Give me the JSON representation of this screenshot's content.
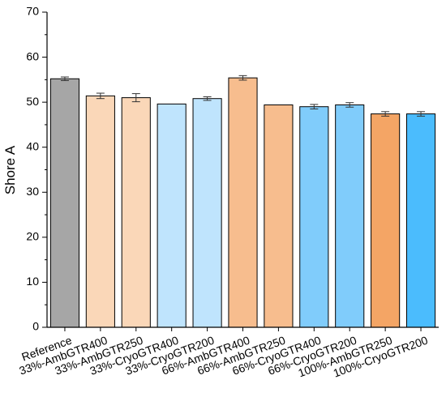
{
  "chart_data": {
    "type": "bar",
    "title": "",
    "xlabel": "",
    "ylabel": "Shore A",
    "ylim": [
      0,
      70
    ],
    "yticks": [
      0,
      10,
      20,
      30,
      40,
      50,
      60,
      70
    ],
    "grid": false,
    "error_bars": true,
    "categories": [
      "Reference",
      "33%-AmbGTR400",
      "33%-AmbGTR250",
      "33%-CryoGTR400",
      "33%-CryoGTR200",
      "66%-AmbGTR400",
      "66%-AmbGTR250",
      "66%-CryoGTR400",
      "66%-CryoGTR200",
      "100%-AmbGTR250",
      "100%-CryoGTR200"
    ],
    "values": [
      55.2,
      51.4,
      51.0,
      49.6,
      50.8,
      55.4,
      49.4,
      49.0,
      49.4,
      47.4,
      47.4
    ],
    "errors": [
      0.4,
      0.6,
      0.9,
      0.0,
      0.4,
      0.5,
      0.0,
      0.5,
      0.5,
      0.5,
      0.5
    ],
    "colors": [
      "#a6a6a6",
      "#fad7b8",
      "#fad7b8",
      "#bfe4fd",
      "#bfe4fd",
      "#f7bd8e",
      "#f7bd8e",
      "#80ccfb",
      "#80ccfb",
      "#f4a565",
      "#4bbcfd"
    ]
  }
}
